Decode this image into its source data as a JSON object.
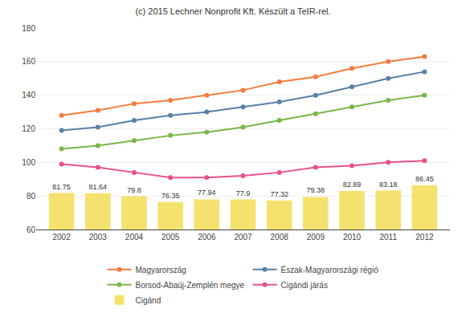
{
  "chart_data": {
    "type": "line",
    "title": "(c) 2015 Lechner Nonprofit Kft. Készült a TeIR-rel.",
    "x": [
      2002,
      2003,
      2004,
      2005,
      2006,
      2007,
      2008,
      2009,
      2010,
      2011,
      2012
    ],
    "xlim": [
      2001.3,
      2012.7
    ],
    "xticks": [
      2002,
      2003,
      2004,
      2005,
      2006,
      2007,
      2008,
      2009,
      2010,
      2011,
      2012
    ],
    "ylim": [
      60,
      180
    ],
    "yticks": [
      60,
      80,
      100,
      120,
      140,
      160,
      180
    ],
    "grid": true,
    "legend": "bottom",
    "series": [
      {
        "name": "Magyarország",
        "color": "#f47c3c",
        "marker": "circle",
        "values": [
          128,
          131,
          135,
          137,
          140,
          143,
          148,
          151,
          156,
          160,
          163
        ]
      },
      {
        "name": "Észak-Magyarországi régió",
        "color": "#5a7fa8",
        "marker": "circle",
        "values": [
          119,
          121,
          125,
          128,
          130,
          133,
          136,
          140,
          145,
          150,
          154
        ]
      },
      {
        "name": "Borsod-Abaúj-Zemplén megye",
        "color": "#7ab648",
        "marker": "circle",
        "values": [
          108,
          110,
          113,
          116,
          118,
          121,
          125,
          129,
          133,
          137,
          140
        ]
      },
      {
        "name": "Cigándi járás",
        "color": "#e8508c",
        "marker": "circle",
        "values": [
          99,
          97,
          94,
          91,
          91,
          92,
          94,
          97,
          98,
          100,
          101
        ]
      },
      {
        "name": "Cigánd",
        "color": "#f5e26e",
        "type": "bar",
        "data_labels": true,
        "values": [
          81.75,
          81.64,
          79.8,
          76.35,
          77.94,
          77.9,
          77.32,
          79.38,
          82.89,
          83.18,
          86.45
        ]
      }
    ]
  }
}
